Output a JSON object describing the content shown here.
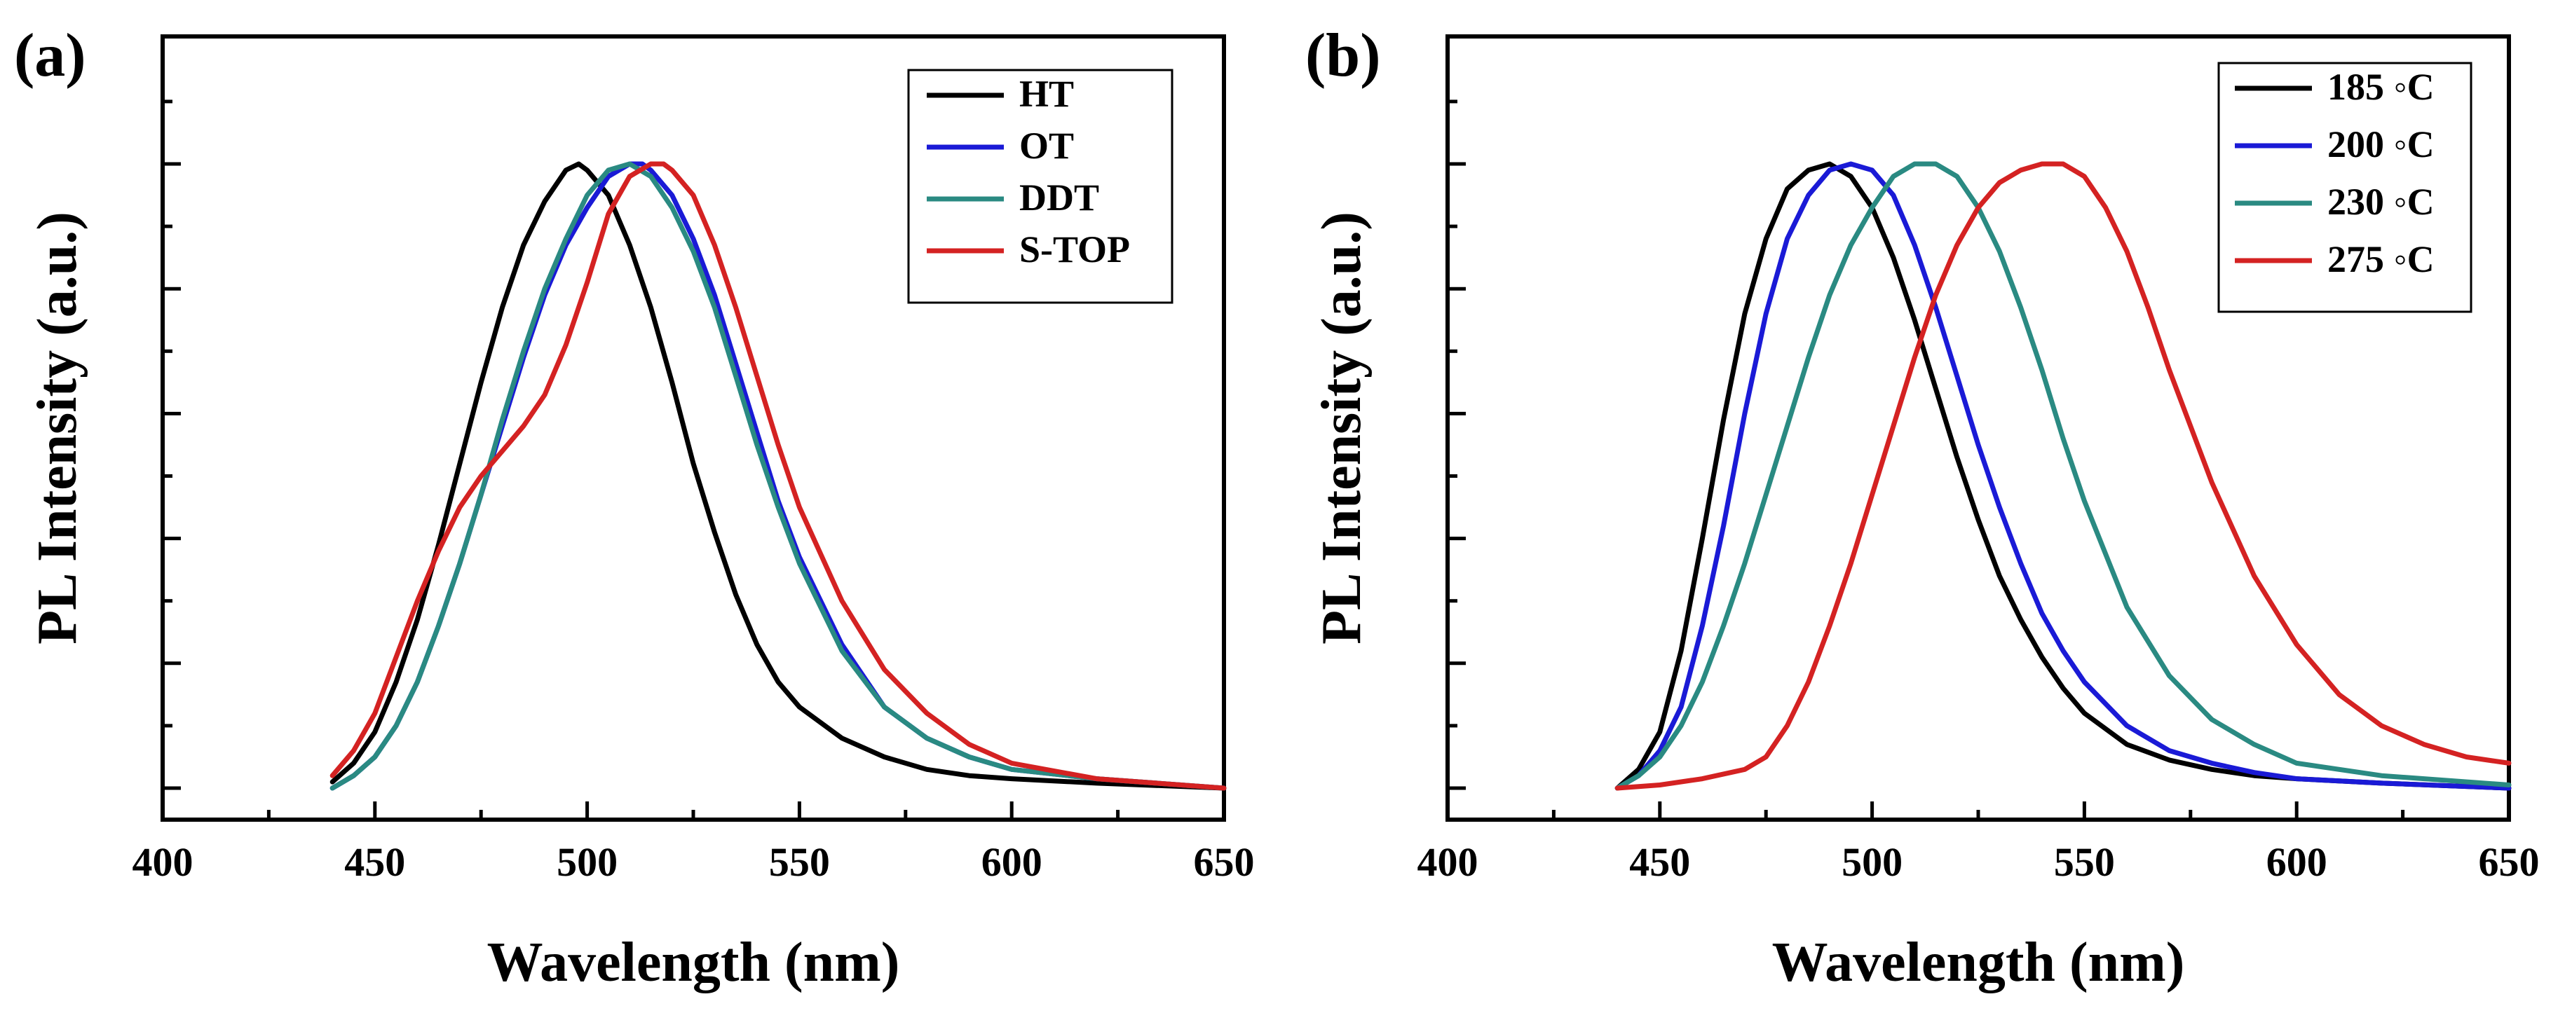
{
  "chart_data": [
    {
      "panel_label": "(a)",
      "type": "line",
      "xlabel": "Wavelength (nm)",
      "ylabel": "PL Intensity (a.u.)",
      "xlim": [
        400,
        650
      ],
      "ylim": [
        0,
        1.05
      ],
      "xticks": [
        400,
        450,
        500,
        550,
        600,
        650
      ],
      "yticks_labeled": false,
      "legend_position": "top-right",
      "series": [
        {
          "name": "HT",
          "color": "#000000",
          "x": [
            440,
            445,
            450,
            455,
            460,
            465,
            470,
            475,
            480,
            485,
            490,
            495,
            498,
            500,
            505,
            510,
            515,
            520,
            525,
            530,
            535,
            540,
            545,
            550,
            560,
            570,
            580,
            590,
            600,
            620,
            650
          ],
          "y": [
            0.01,
            0.04,
            0.09,
            0.17,
            0.27,
            0.39,
            0.52,
            0.65,
            0.77,
            0.87,
            0.94,
            0.99,
            1.0,
            0.99,
            0.95,
            0.87,
            0.77,
            0.65,
            0.52,
            0.41,
            0.31,
            0.23,
            0.17,
            0.13,
            0.08,
            0.05,
            0.03,
            0.02,
            0.015,
            0.008,
            0.0
          ]
        },
        {
          "name": "OT",
          "color": "#1a1ad6",
          "x": [
            440,
            445,
            450,
            455,
            460,
            465,
            470,
            475,
            480,
            485,
            490,
            495,
            500,
            505,
            510,
            513,
            515,
            520,
            525,
            530,
            535,
            540,
            545,
            550,
            560,
            570,
            580,
            590,
            600,
            620,
            650
          ],
          "y": [
            0.0,
            0.02,
            0.05,
            0.1,
            0.17,
            0.26,
            0.36,
            0.47,
            0.58,
            0.69,
            0.79,
            0.87,
            0.93,
            0.98,
            1.0,
            1.0,
            0.99,
            0.95,
            0.88,
            0.79,
            0.68,
            0.57,
            0.46,
            0.37,
            0.23,
            0.13,
            0.08,
            0.05,
            0.03,
            0.015,
            0.0
          ]
        },
        {
          "name": "DDT",
          "color": "#2a8a82",
          "x": [
            440,
            445,
            450,
            455,
            460,
            465,
            470,
            475,
            480,
            485,
            490,
            495,
            500,
            505,
            510,
            515,
            520,
            525,
            530,
            535,
            540,
            545,
            550,
            560,
            570,
            580,
            590,
            600,
            620,
            650
          ],
          "y": [
            0.0,
            0.02,
            0.05,
            0.1,
            0.17,
            0.26,
            0.36,
            0.47,
            0.59,
            0.7,
            0.8,
            0.88,
            0.95,
            0.99,
            1.0,
            0.98,
            0.93,
            0.86,
            0.77,
            0.66,
            0.55,
            0.45,
            0.36,
            0.22,
            0.13,
            0.08,
            0.05,
            0.03,
            0.015,
            0.0
          ]
        },
        {
          "name": "S-TOP",
          "color": "#d42222",
          "x": [
            440,
            445,
            450,
            455,
            460,
            465,
            470,
            475,
            480,
            485,
            490,
            495,
            500,
            505,
            510,
            515,
            518,
            520,
            525,
            530,
            535,
            540,
            545,
            550,
            560,
            570,
            580,
            590,
            600,
            620,
            650
          ],
          "y": [
            0.02,
            0.06,
            0.12,
            0.21,
            0.3,
            0.38,
            0.45,
            0.5,
            0.54,
            0.58,
            0.63,
            0.71,
            0.81,
            0.92,
            0.98,
            1.0,
            1.0,
            0.99,
            0.95,
            0.87,
            0.77,
            0.66,
            0.55,
            0.45,
            0.3,
            0.19,
            0.12,
            0.07,
            0.04,
            0.015,
            0.0
          ]
        }
      ]
    },
    {
      "panel_label": "(b)",
      "type": "line",
      "xlabel": "Wavelength (nm)",
      "ylabel": "PL Intensity (a.u.)",
      "xlim": [
        400,
        650
      ],
      "ylim": [
        0,
        1.05
      ],
      "xticks": [
        400,
        450,
        500,
        550,
        600,
        650
      ],
      "yticks_labeled": false,
      "legend_position": "top-right",
      "series": [
        {
          "name": "185 ◦C",
          "color": "#000000",
          "x": [
            440,
            445,
            450,
            455,
            460,
            465,
            470,
            475,
            480,
            485,
            490,
            495,
            500,
            505,
            510,
            515,
            520,
            525,
            530,
            535,
            540,
            545,
            550,
            560,
            570,
            580,
            590,
            600,
            620,
            650
          ],
          "y": [
            0.0,
            0.03,
            0.09,
            0.22,
            0.4,
            0.59,
            0.76,
            0.88,
            0.96,
            0.99,
            1.0,
            0.98,
            0.93,
            0.85,
            0.75,
            0.64,
            0.53,
            0.43,
            0.34,
            0.27,
            0.21,
            0.16,
            0.12,
            0.07,
            0.045,
            0.03,
            0.02,
            0.015,
            0.008,
            0.0
          ]
        },
        {
          "name": "200 ◦C",
          "color": "#1a1ad6",
          "x": [
            440,
            445,
            450,
            455,
            460,
            465,
            470,
            475,
            480,
            485,
            490,
            495,
            500,
            505,
            510,
            515,
            520,
            525,
            530,
            535,
            540,
            545,
            550,
            560,
            570,
            580,
            590,
            600,
            620,
            650
          ],
          "y": [
            0.0,
            0.02,
            0.06,
            0.13,
            0.26,
            0.42,
            0.6,
            0.76,
            0.88,
            0.95,
            0.99,
            1.0,
            0.99,
            0.95,
            0.87,
            0.77,
            0.66,
            0.55,
            0.45,
            0.36,
            0.28,
            0.22,
            0.17,
            0.1,
            0.06,
            0.04,
            0.025,
            0.015,
            0.008,
            0.0
          ]
        },
        {
          "name": "230 ◦C",
          "color": "#2a8a82",
          "x": [
            440,
            445,
            450,
            455,
            460,
            465,
            470,
            475,
            480,
            485,
            490,
            495,
            500,
            505,
            510,
            515,
            520,
            525,
            530,
            535,
            540,
            545,
            550,
            560,
            570,
            580,
            590,
            600,
            620,
            650
          ],
          "y": [
            0.0,
            0.02,
            0.05,
            0.1,
            0.17,
            0.26,
            0.36,
            0.47,
            0.58,
            0.69,
            0.79,
            0.87,
            0.93,
            0.98,
            1.0,
            1.0,
            0.98,
            0.93,
            0.86,
            0.77,
            0.67,
            0.56,
            0.46,
            0.29,
            0.18,
            0.11,
            0.07,
            0.04,
            0.02,
            0.005
          ]
        },
        {
          "name": "275 ◦C",
          "color": "#d42222",
          "x": [
            440,
            450,
            460,
            470,
            475,
            480,
            485,
            490,
            495,
            500,
            505,
            510,
            515,
            520,
            525,
            530,
            535,
            540,
            545,
            550,
            555,
            560,
            565,
            570,
            580,
            590,
            600,
            610,
            620,
            630,
            640,
            650
          ],
          "y": [
            0.0,
            0.005,
            0.015,
            0.03,
            0.05,
            0.1,
            0.17,
            0.26,
            0.36,
            0.47,
            0.58,
            0.69,
            0.79,
            0.87,
            0.93,
            0.97,
            0.99,
            1.0,
            1.0,
            0.98,
            0.93,
            0.86,
            0.77,
            0.67,
            0.49,
            0.34,
            0.23,
            0.15,
            0.1,
            0.07,
            0.05,
            0.04
          ]
        }
      ]
    }
  ]
}
